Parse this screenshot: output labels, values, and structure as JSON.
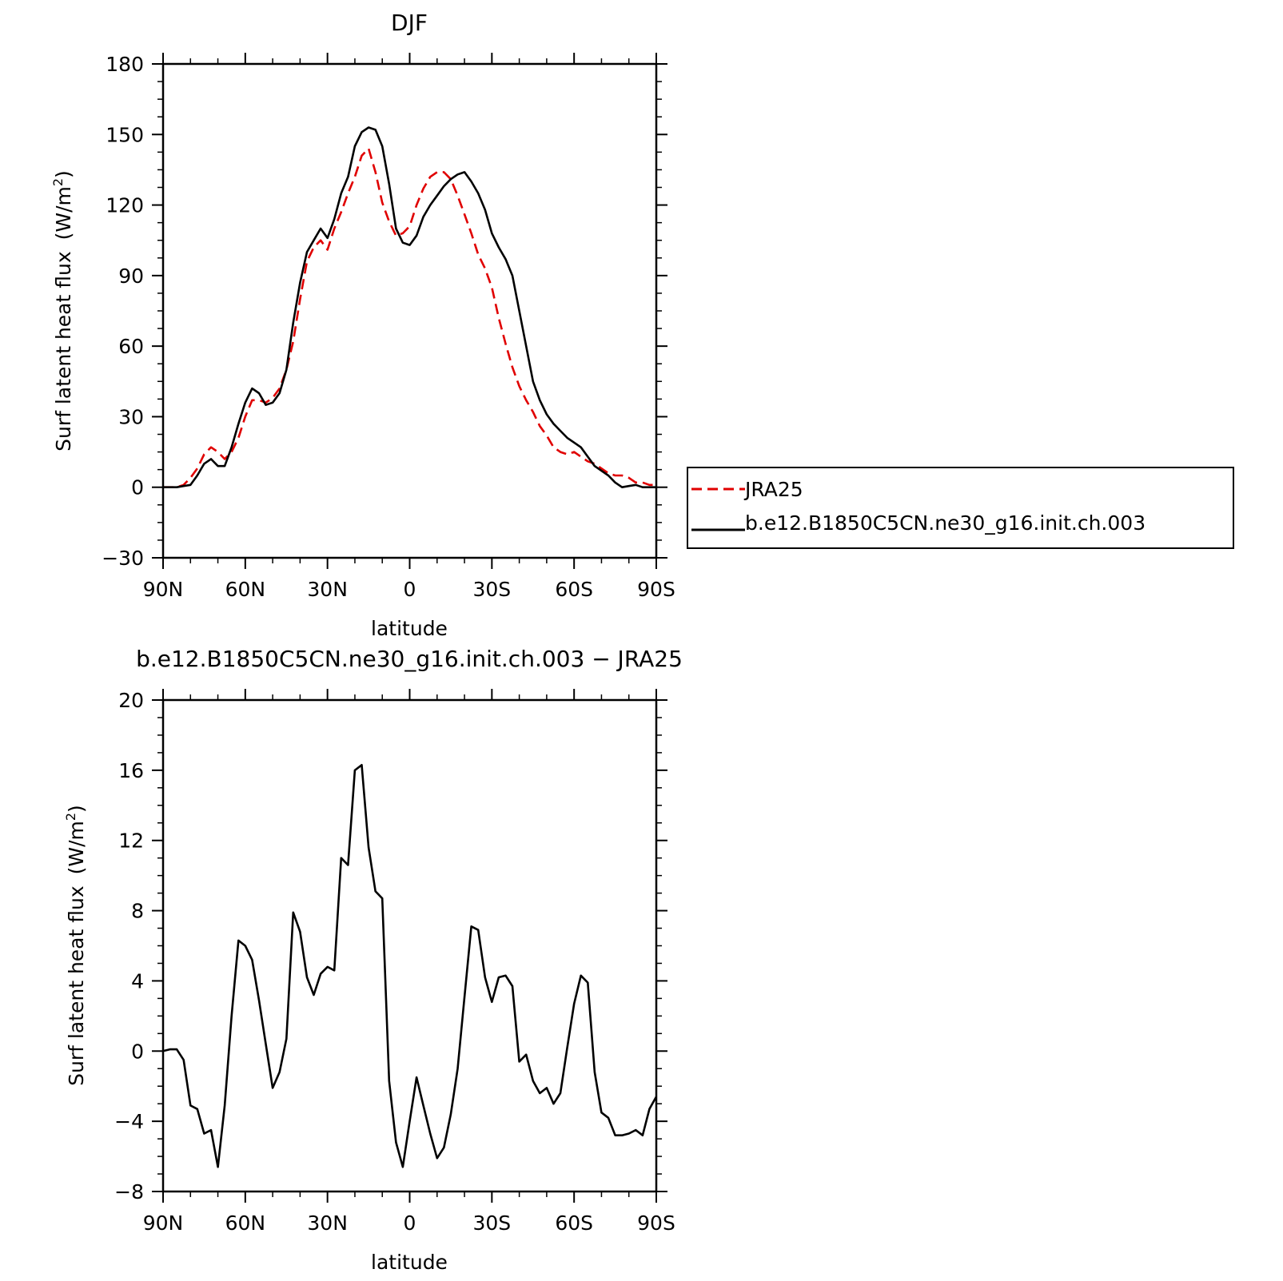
{
  "chart_data": [
    {
      "type": "line",
      "title": "DJF",
      "xlabel": "latitude",
      "ylabel": "Surf latent heat flux",
      "ylabel_unit": "(W/m",
      "ylabel_sup": "2",
      "ylabel_close": ")",
      "xlim": [
        90,
        -90
      ],
      "ylim": [
        -30,
        180
      ],
      "x_ticks": [
        90,
        60,
        30,
        0,
        -30,
        -60,
        -90
      ],
      "x_tick_labels": [
        "90N",
        "60N",
        "30N",
        "0",
        "30S",
        "60S",
        "90S"
      ],
      "y_ticks": [
        -30,
        0,
        30,
        60,
        90,
        120,
        150,
        180
      ],
      "y_tick_labels": [
        "−30",
        "0",
        "30",
        "60",
        "90",
        "120",
        "150",
        "180"
      ],
      "grid": false,
      "legend": "right",
      "series": [
        {
          "name": "JRA25",
          "color": "#e00000",
          "dash": "dashed",
          "x": [
            90,
            87.5,
            85,
            82.5,
            80,
            77.5,
            75,
            72.5,
            70,
            67.5,
            65,
            62.5,
            60,
            57.5,
            55,
            52.5,
            50,
            47.5,
            45,
            42.5,
            40,
            37.5,
            35,
            32.5,
            30,
            27.5,
            25,
            22.5,
            20,
            17.5,
            15,
            12.5,
            10,
            7.5,
            5,
            2.5,
            0,
            -2.5,
            -5,
            -7.5,
            -10,
            -12.5,
            -15,
            -17.5,
            -20,
            -22.5,
            -25,
            -27.5,
            -30,
            -32.5,
            -35,
            -37.5,
            -40,
            -42.5,
            -45,
            -47.5,
            -50,
            -52.5,
            -55,
            -57.5,
            -60,
            -62.5,
            -65,
            -67.5,
            -70,
            -72.5,
            -75,
            -77.5,
            -80,
            -82.5,
            -85,
            -87.5,
            -90
          ],
          "values": [
            0,
            0,
            0,
            1,
            4,
            8,
            14,
            17,
            15,
            12,
            15,
            21,
            30,
            37,
            37,
            36,
            38,
            42,
            50,
            62,
            80,
            96,
            102,
            105,
            101,
            110,
            117,
            125,
            132,
            141,
            144,
            134,
            121,
            113,
            107,
            108,
            111,
            120,
            127,
            132,
            134,
            134,
            131,
            124,
            116,
            108,
            99,
            93,
            85,
            72,
            61,
            51,
            43,
            37,
            32,
            26,
            22,
            17,
            15,
            14,
            15,
            13,
            11,
            10,
            8,
            6,
            5,
            5,
            4,
            2,
            2,
            1,
            1
          ]
        },
        {
          "name": "b.e12.B1850C5CN.ne30_g16.init.ch.003",
          "color": "#000000",
          "dash": "solid",
          "x": [
            90,
            87.5,
            85,
            82.5,
            80,
            77.5,
            75,
            72.5,
            70,
            67.5,
            65,
            62.5,
            60,
            57.5,
            55,
            52.5,
            50,
            47.5,
            45,
            42.5,
            40,
            37.5,
            35,
            32.5,
            30,
            27.5,
            25,
            22.5,
            20,
            17.5,
            15,
            12.5,
            10,
            7.5,
            5,
            2.5,
            0,
            -2.5,
            -5,
            -7.5,
            -10,
            -12.5,
            -15,
            -17.5,
            -20,
            -22.5,
            -25,
            -27.5,
            -30,
            -32.5,
            -35,
            -37.5,
            -40,
            -42.5,
            -45,
            -47.5,
            -50,
            -52.5,
            -55,
            -57.5,
            -60,
            -62.5,
            -65,
            -67.5,
            -70,
            -72.5,
            -75,
            -77.5,
            -80,
            -82.5,
            -85,
            -87.5,
            -90
          ],
          "values": [
            0,
            0,
            0,
            0.5,
            1,
            5,
            10,
            12,
            9,
            9,
            17,
            27,
            36,
            42,
            40,
            35,
            36,
            40,
            50,
            70,
            87,
            100,
            105,
            110,
            106,
            114,
            125,
            132,
            145,
            151,
            153,
            152,
            145,
            129,
            110,
            104,
            103,
            107,
            115,
            120,
            124,
            128,
            131,
            133,
            134,
            130,
            125,
            118,
            108,
            102,
            97,
            90,
            75,
            60,
            45,
            37,
            31,
            27,
            24,
            21,
            19,
            17,
            13,
            9,
            7,
            5,
            2,
            0,
            0.5,
            1,
            0,
            0,
            0
          ]
        }
      ]
    },
    {
      "type": "line",
      "title": "b.e12.B1850C5CN.ne30_g16.init.ch.003 − JRA25",
      "xlabel": "latitude",
      "ylabel": "Surf latent heat flux",
      "ylabel_unit": "(W/m",
      "ylabel_sup": "2",
      "ylabel_close": ")",
      "xlim": [
        90,
        -90
      ],
      "ylim": [
        -8,
        20
      ],
      "x_ticks": [
        90,
        60,
        30,
        0,
        -30,
        -60,
        -90
      ],
      "x_tick_labels": [
        "90N",
        "60N",
        "30N",
        "0",
        "30S",
        "60S",
        "90S"
      ],
      "y_ticks": [
        -8,
        -4,
        0,
        4,
        8,
        12,
        16,
        20
      ],
      "y_tick_labels": [
        "−8",
        "−4",
        "0",
        "4",
        "8",
        "12",
        "16",
        "20"
      ],
      "grid": false,
      "series": [
        {
          "color": "#000000",
          "dash": "solid",
          "x": [
            90,
            87.5,
            85,
            82.5,
            80,
            77.5,
            75,
            72.5,
            70,
            67.5,
            65,
            62.5,
            60,
            57.5,
            55,
            52.5,
            50,
            47.5,
            45,
            42.5,
            40,
            37.5,
            35,
            32.5,
            30,
            27.5,
            25,
            22.5,
            20,
            17.5,
            15,
            12.5,
            10,
            7.5,
            5,
            2.5,
            0,
            -2.5,
            -5,
            -7.5,
            -10,
            -12.5,
            -15,
            -17.5,
            -20,
            -22.5,
            -25,
            -27.5,
            -30,
            -32.5,
            -35,
            -37.5,
            -40,
            -42.5,
            -45,
            -47.5,
            -50,
            -52.5,
            -55,
            -57.5,
            -60,
            -62.5,
            -65,
            -67.5,
            -70,
            -72.5,
            -75,
            -77.5,
            -80,
            -82.5,
            -85,
            -87.5,
            -90
          ],
          "values": [
            0,
            0.1,
            0.1,
            -0.5,
            -3.1,
            -3.3,
            -4.7,
            -4.5,
            -6.6,
            -3.1,
            2,
            6.3,
            6,
            5.2,
            2.9,
            0.4,
            -2.1,
            -1.2,
            0.7,
            7.9,
            6.8,
            4.2,
            3.2,
            4.4,
            4.8,
            4.6,
            11,
            10.6,
            16,
            16.3,
            11.6,
            9.1,
            8.7,
            -1.7,
            -5.2,
            -6.6,
            -4,
            -1.5,
            -3.1,
            -4.7,
            -6.1,
            -5.5,
            -3.6,
            -1,
            3.1,
            7.1,
            6.9,
            4.2,
            2.8,
            4.2,
            4.3,
            3.7,
            -0.6,
            -0.2,
            -1.7,
            -2.4,
            -2.1,
            -3,
            -2.4,
            0.2,
            2.7,
            4.3,
            3.9,
            -1.2,
            -3.5,
            -3.8,
            -4.8,
            -4.8,
            -4.7,
            -4.5,
            -4.8,
            -3.3,
            -2.6
          ]
        }
      ]
    }
  ]
}
